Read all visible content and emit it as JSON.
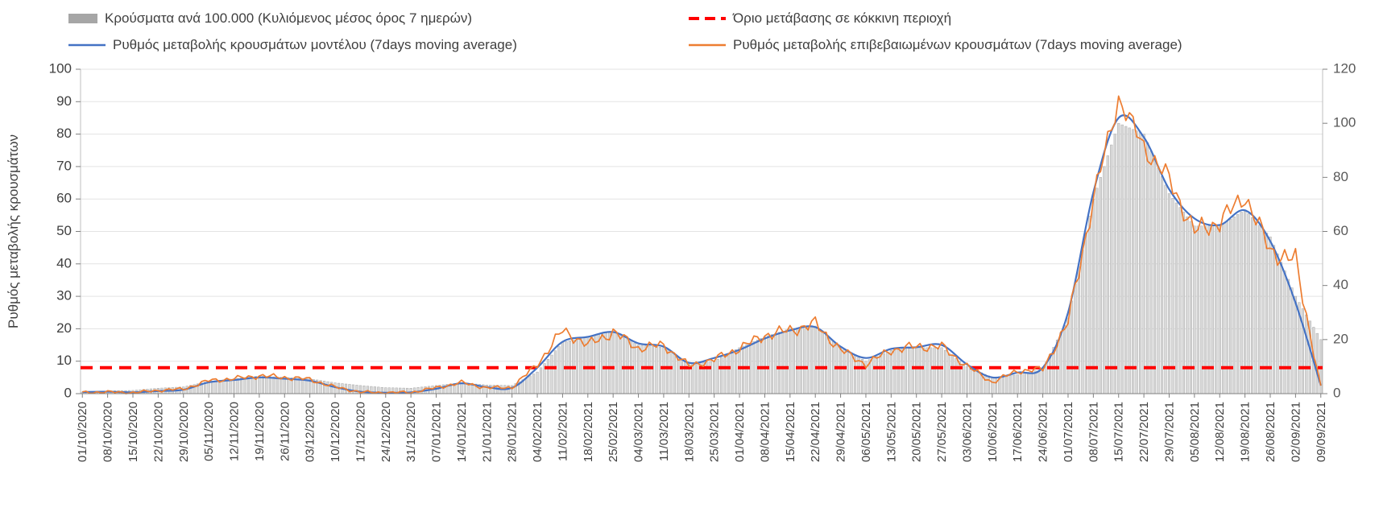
{
  "chart_data": {
    "type": "combo",
    "title": "",
    "legend_position": "top",
    "grid": true,
    "x_labels": [
      "01/10/2020",
      "08/10/2020",
      "15/10/2020",
      "22/10/2020",
      "29/10/2020",
      "05/11/2020",
      "12/11/2020",
      "19/11/2020",
      "26/11/2020",
      "03/12/2020",
      "10/12/2020",
      "17/12/2020",
      "24/12/2020",
      "31/12/2020",
      "07/01/2021",
      "14/01/2021",
      "21/01/2021",
      "28/01/2021",
      "04/02/2021",
      "11/02/2021",
      "18/02/2021",
      "25/02/2021",
      "04/03/2021",
      "11/03/2021",
      "18/03/2021",
      "25/03/2021",
      "01/04/2021",
      "08/04/2021",
      "15/04/2021",
      "22/04/2021",
      "29/04/2021",
      "06/05/2021",
      "13/05/2021",
      "20/05/2021",
      "27/05/2021",
      "03/06/2021",
      "10/06/2021",
      "17/06/2021",
      "24/06/2021",
      "01/07/2021",
      "08/07/2021",
      "15/07/2021",
      "22/07/2021",
      "29/07/2021",
      "05/08/2021",
      "12/08/2021",
      "19/08/2021",
      "26/08/2021",
      "02/09/2021",
      "09/09/2021"
    ],
    "left_axis": {
      "label": "Ρυθμός μεταβολής κρουσμάτων",
      "min": 0,
      "max": 100,
      "step": 10
    },
    "right_axis": {
      "label": "",
      "min": 0,
      "max": 120,
      "step": 20
    },
    "threshold": {
      "label": "Όριο μετάβασης σε κόκκινη περιοχή",
      "value": 8,
      "axis": "left",
      "color": "#ff0000"
    },
    "series": [
      {
        "name": "Κρούσματα ανά 100.000 (Κυλιόμενος μέσος όρος 7 ημερών)",
        "type": "bar",
        "axis": "right",
        "color": "#a6a6a6",
        "fill": "#d9d9d9",
        "values": [
          0.6,
          1.0,
          1.2,
          2.0,
          2.5,
          4.5,
          5.5,
          6.5,
          6.0,
          5.5,
          4.0,
          3.0,
          2.2,
          2.0,
          3.0,
          4.0,
          3.2,
          3.0,
          8.0,
          19.0,
          21.0,
          23.0,
          18.0,
          17.0,
          11.0,
          12.0,
          17.0,
          21.0,
          24.0,
          25.0,
          17.0,
          12.0,
          16.0,
          17.0,
          17.0,
          10.0,
          6.0,
          7.0,
          9.0,
          28.0,
          72.0,
          100.0,
          96.0,
          74.0,
          62.0,
          62.0,
          68.0,
          58.0,
          36.0,
          20.0
        ]
      },
      {
        "name": "Ρυθμός μεταβολής κρουσμάτων μοντέλου (7days moving average)",
        "type": "line",
        "axis": "left",
        "color": "#4472c4",
        "noise": 0,
        "values": [
          0.5,
          0.6,
          0.4,
          0.8,
          1.2,
          3.5,
          4.2,
          5.0,
          4.6,
          4.0,
          2.0,
          0.6,
          0.3,
          0.4,
          1.5,
          3.2,
          2.0,
          1.8,
          8.0,
          16.0,
          17.5,
          19.0,
          15.5,
          14.5,
          9.5,
          11.0,
          13.5,
          17.0,
          19.5,
          20.5,
          14.5,
          11.0,
          13.8,
          14.3,
          15.0,
          9.0,
          5.0,
          6.5,
          8.0,
          25.0,
          62.0,
          85.0,
          79.0,
          63.0,
          54.0,
          52.0,
          56.5,
          47.0,
          28.0,
          2.5
        ]
      },
      {
        "name": "Ρυθμός μεταβολής επιβεβαιωμένων κρουσμάτων (7days moving average)",
        "type": "line",
        "axis": "left",
        "color": "#ed7d31",
        "noise": 1,
        "values": [
          0.4,
          0.5,
          0.3,
          1.0,
          1.4,
          4.0,
          4.6,
          5.5,
          5.0,
          4.4,
          2.0,
          0.5,
          0.3,
          0.4,
          1.8,
          3.4,
          1.8,
          1.9,
          9.0,
          19.5,
          15.0,
          19.0,
          14.0,
          15.0,
          8.5,
          10.5,
          14.0,
          18.0,
          19.5,
          21.5,
          13.5,
          9.0,
          13.5,
          14.5,
          14.5,
          8.5,
          3.5,
          7.0,
          7.5,
          22.0,
          60.0,
          91.0,
          76.0,
          66.0,
          50.0,
          53.0,
          61.0,
          44.0,
          41.0,
          2.0
        ]
      }
    ]
  }
}
